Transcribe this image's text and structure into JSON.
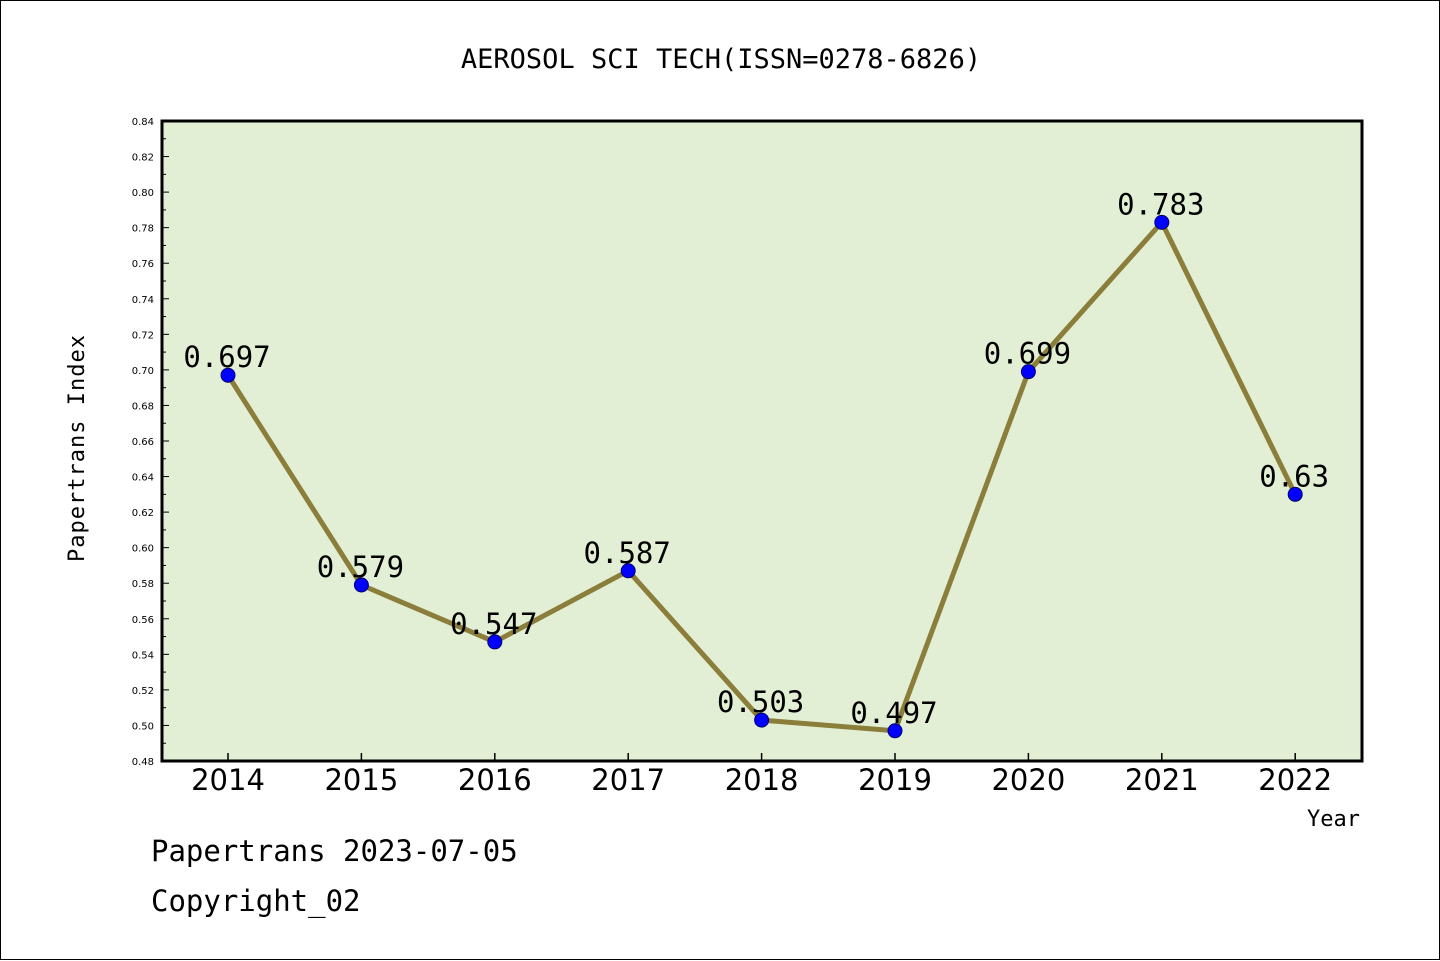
{
  "chart_data": {
    "type": "line",
    "title": "AEROSOL SCI TECH(ISSN=0278-6826)",
    "xlabel": "Year",
    "ylabel": "Papertrans Index",
    "categories": [
      "2014",
      "2015",
      "2016",
      "2017",
      "2018",
      "2019",
      "2020",
      "2021",
      "2022"
    ],
    "values": [
      0.697,
      0.579,
      0.547,
      0.587,
      0.503,
      0.497,
      0.699,
      0.783,
      0.63
    ],
    "data_labels": [
      "0.697",
      "0.579",
      "0.547",
      "0.587",
      "0.503",
      "0.497",
      "0.699",
      "0.783",
      "0.63"
    ],
    "ylim": [
      0.48,
      0.84
    ],
    "yticks": [
      "0.48",
      "0.50",
      "0.52",
      "0.54",
      "0.56",
      "0.58",
      "0.60",
      "0.62",
      "0.64",
      "0.66",
      "0.68",
      "0.70",
      "0.72",
      "0.74",
      "0.76",
      "0.78",
      "0.80",
      "0.82",
      "0.84"
    ],
    "grid": false,
    "colors": {
      "line": "#8b7d3a",
      "marker": "#0000ff",
      "plot_background": "#e2efd5",
      "frame": "#000000"
    }
  },
  "footer": {
    "date_line": "Papertrans 2023-07-05",
    "copyright_line": "Copyright_02"
  }
}
